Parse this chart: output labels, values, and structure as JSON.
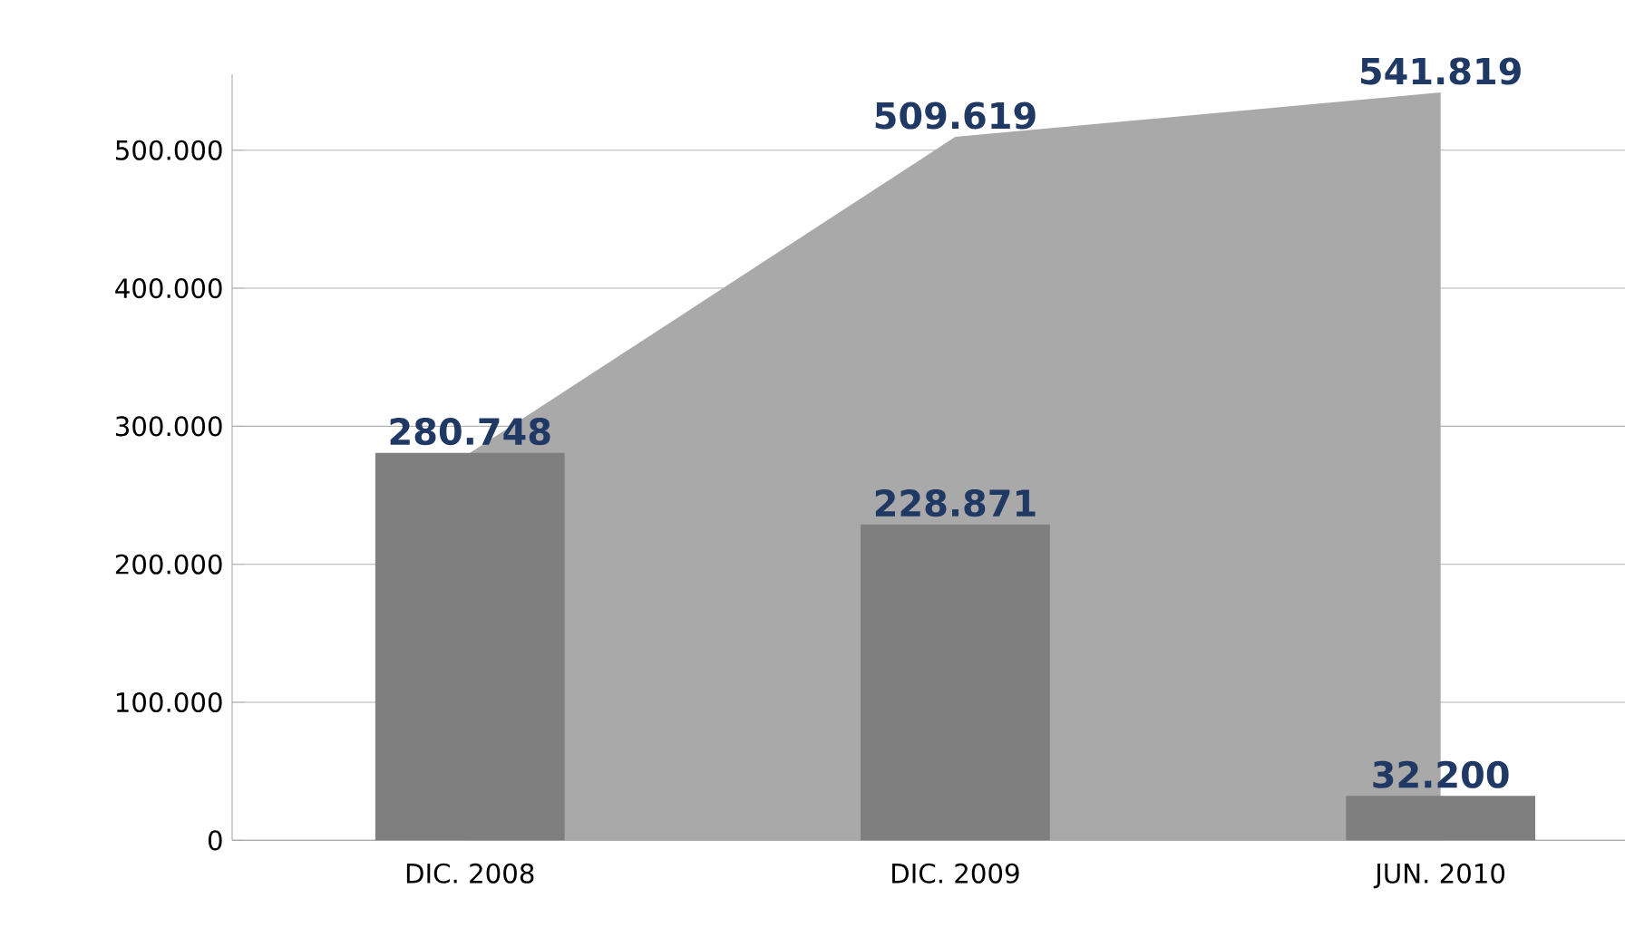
{
  "chart_data": {
    "type": "bar",
    "categories": [
      "DIC. 2008",
      "DIC. 2009",
      "JUN. 2010"
    ],
    "series": [
      {
        "type": "area",
        "color": "#a9a9a9",
        "values": [
          280748,
          509619,
          541819
        ],
        "value_labels": [
          null,
          "509.619",
          "541.819"
        ]
      },
      {
        "color": "#7f7f7f",
        "values": [
          280748,
          228871,
          32200
        ],
        "value_labels": [
          "280.748",
          "228.871",
          "32.200"
        ]
      }
    ],
    "ylim": [
      0,
      555000
    ],
    "yticks": [
      {
        "value": 0,
        "label": "0"
      },
      {
        "value": 100000,
        "label": "100.000"
      },
      {
        "value": 200000,
        "label": "200.000"
      },
      {
        "value": 300000,
        "label": "300.000"
      },
      {
        "value": 400000,
        "label": "400.000"
      },
      {
        "value": 500000,
        "label": "500.000"
      }
    ],
    "grid": "y"
  }
}
